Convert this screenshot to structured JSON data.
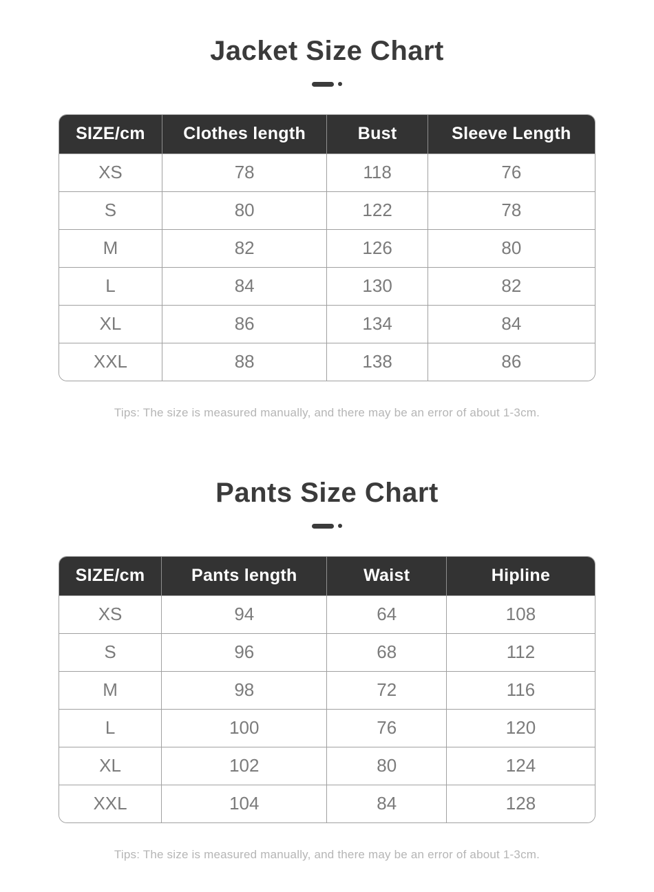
{
  "colors": {
    "title": "#3b3b3b",
    "accent": "#3b3b3b",
    "header_bg": "#333333",
    "header_text": "#ffffff",
    "border": "#a0a0a0",
    "cell_text": "#7b7b7b",
    "tip_text": "#b5b5b5",
    "background": "#ffffff"
  },
  "sections": [
    {
      "title": "Jacket Size Chart",
      "table": {
        "headers": [
          "SIZE/cm",
          "Clothes length",
          "Bust",
          "Sleeve Length"
        ],
        "rows": [
          [
            "XS",
            "78",
            "118",
            "76"
          ],
          [
            "S",
            "80",
            "122",
            "78"
          ],
          [
            "M",
            "82",
            "126",
            "80"
          ],
          [
            "L",
            "84",
            "130",
            "82"
          ],
          [
            "XL",
            "86",
            "134",
            "84"
          ],
          [
            "XXL",
            "88",
            "138",
            "86"
          ]
        ]
      },
      "tip": "Tips: The size is measured manually, and there may be an error of about 1-3cm."
    },
    {
      "title": "Pants Size Chart",
      "table": {
        "headers": [
          "SIZE/cm",
          "Pants length",
          "Waist",
          "Hipline"
        ],
        "rows": [
          [
            "XS",
            "94",
            "64",
            "108"
          ],
          [
            "S",
            "96",
            "68",
            "112"
          ],
          [
            "M",
            "98",
            "72",
            "116"
          ],
          [
            "L",
            "100",
            "76",
            "120"
          ],
          [
            "XL",
            "102",
            "80",
            "124"
          ],
          [
            "XXL",
            "104",
            "84",
            "128"
          ]
        ]
      },
      "tip": "Tips: The size is measured manually, and there may be an error of about 1-3cm."
    }
  ]
}
